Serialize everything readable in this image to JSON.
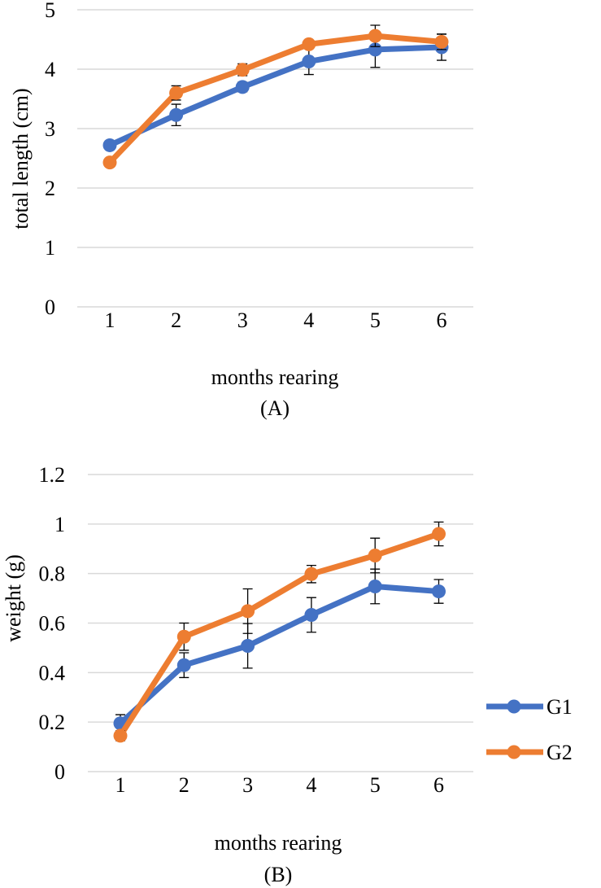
{
  "colors": {
    "g1": "#4472C4",
    "g2": "#ED7D31",
    "grid": "#D9D9D9",
    "errbar": "#000000"
  },
  "legend": {
    "entries": [
      "G1",
      "G2"
    ],
    "position": "right"
  },
  "chart_data": [
    {
      "type": "line",
      "panel_label": "(A)",
      "title": "",
      "xlabel": "months rearing",
      "ylabel": "total length (cm)",
      "categories": [
        "1",
        "2",
        "3",
        "4",
        "5",
        "6"
      ],
      "ylim": [
        0,
        5
      ],
      "yticks": [
        "0",
        "1",
        "2",
        "3",
        "4",
        "5"
      ],
      "grid": true,
      "series": [
        {
          "name": "G1",
          "values": [
            2.72,
            3.23,
            3.7,
            4.13,
            4.33,
            4.37
          ],
          "errors": [
            0.05,
            0.18,
            0.08,
            0.22,
            0.3,
            0.22
          ]
        },
        {
          "name": "G2",
          "values": [
            2.43,
            3.6,
            3.99,
            4.42,
            4.56,
            4.46
          ],
          "errors": [
            0.05,
            0.12,
            0.1,
            0.06,
            0.18,
            0.13
          ]
        }
      ]
    },
    {
      "type": "line",
      "panel_label": "(B)",
      "title": "",
      "xlabel": "months rearing",
      "ylabel": "weight (g)",
      "categories": [
        "1",
        "2",
        "3",
        "4",
        "5",
        "6"
      ],
      "ylim": [
        0,
        1.2
      ],
      "yticks": [
        "0",
        "0.2",
        "0.4",
        "0.6",
        "0.8",
        "1",
        "1.2"
      ],
      "grid": true,
      "series": [
        {
          "name": "G1",
          "values": [
            0.195,
            0.43,
            0.508,
            0.633,
            0.748,
            0.728
          ],
          "errors": [
            0.035,
            0.05,
            0.09,
            0.07,
            0.07,
            0.048
          ]
        },
        {
          "name": "G2",
          "values": [
            0.145,
            0.545,
            0.648,
            0.798,
            0.873,
            0.96
          ],
          "errors": [
            0.02,
            0.055,
            0.09,
            0.035,
            0.07,
            0.048
          ]
        }
      ]
    }
  ]
}
